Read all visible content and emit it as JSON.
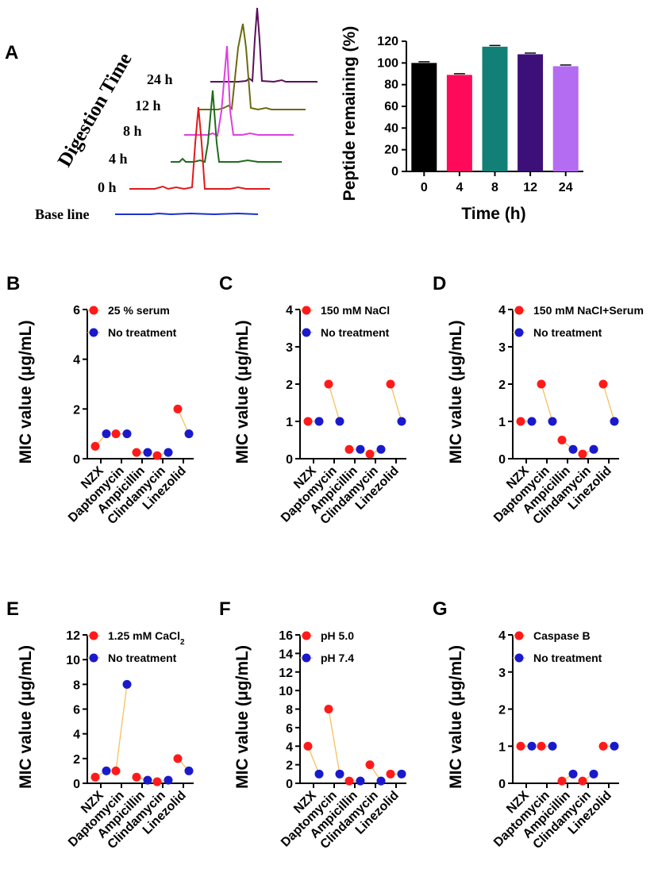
{
  "panel_letters": [
    "A",
    "B",
    "C",
    "D",
    "E",
    "F",
    "G"
  ],
  "chromatogram": {
    "title": "Digestion Time",
    "traces": [
      {
        "label": "24 h",
        "color": "#5b0f5b",
        "peak": 95
      },
      {
        "label": "12 h",
        "color": "#6b6b10",
        "peak": 108
      },
      {
        "label": "8 h",
        "color": "#e03ee0",
        "peak": 80
      },
      {
        "label": "4 h",
        "color": "#1e6b1e",
        "peak": 55
      },
      {
        "label": "0 h",
        "color": "#e01a1a",
        "peak": 70
      },
      {
        "label": "Base line",
        "color": "#1a2fd6",
        "peak": 0
      }
    ]
  },
  "chart_data": [
    {
      "id": "A",
      "type": "bar",
      "title": "",
      "xlabel": "Time (h)",
      "ylabel": "Peptide remaining (%)",
      "categories": [
        "0",
        "4",
        "8",
        "12",
        "24"
      ],
      "values": [
        100,
        89,
        115,
        108,
        97
      ],
      "colors": [
        "#000000",
        "#ff0a5a",
        "#128077",
        "#3d0f78",
        "#b36cf2"
      ],
      "ylim": [
        0,
        120
      ],
      "yticks": [
        "0",
        "20",
        "40",
        "60",
        "80",
        "100",
        "120"
      ]
    },
    {
      "id": "B",
      "type": "scatter",
      "ylabel": "MIC value (μg/mL)",
      "categories": [
        "NZX",
        "Daptomycin",
        "Ampicillin",
        "Clindamycin",
        "Linezolid"
      ],
      "ylim": [
        0,
        6
      ],
      "yticks": [
        "0",
        "2",
        "4",
        "6"
      ],
      "series": [
        {
          "name": "25 % serum",
          "values": [
            0.5,
            1,
            0.25,
            0.125,
            2
          ]
        },
        {
          "name": "No treatment",
          "values": [
            1,
            1,
            0.25,
            0.25,
            1
          ]
        }
      ]
    },
    {
      "id": "C",
      "type": "scatter",
      "ylabel": "MIC value (μg/mL)",
      "categories": [
        "NZX",
        "Daptomycin",
        "Ampicillin",
        "Clindamycin",
        "Linezolid"
      ],
      "ylim": [
        0,
        4
      ],
      "yticks": [
        "0",
        "1",
        "2",
        "3",
        "4"
      ],
      "series": [
        {
          "name": "150 mM NaCl",
          "values": [
            1,
            2,
            0.25,
            0.125,
            2
          ]
        },
        {
          "name": "No treatment",
          "values": [
            1,
            1,
            0.25,
            0.25,
            1
          ]
        }
      ]
    },
    {
      "id": "D",
      "type": "scatter",
      "ylabel": "MIC value (μg/mL)",
      "categories": [
        "NZX",
        "Daptomycin",
        "Ampicillin",
        "Clindamycin",
        "Linezolid"
      ],
      "ylim": [
        0,
        4
      ],
      "yticks": [
        "0",
        "1",
        "2",
        "3",
        "4"
      ],
      "series": [
        {
          "name": "150 mM NaCl+Serum",
          "values": [
            1,
            2,
            0.5,
            0.125,
            2
          ]
        },
        {
          "name": "No treatment",
          "values": [
            1,
            1,
            0.25,
            0.25,
            1
          ]
        }
      ]
    },
    {
      "id": "E",
      "type": "scatter",
      "ylabel": "MIC value (μg/mL)",
      "categories": [
        "NZX",
        "Daptomycin",
        "Ampicillin",
        "Clindamycin",
        "Linezolid"
      ],
      "ylim": [
        0,
        12
      ],
      "yticks": [
        "0",
        "2",
        "4",
        "6",
        "8",
        "10",
        "12"
      ],
      "series": [
        {
          "name": "1.25 mM CaCl",
          "subscript": "2",
          "values": [
            0.5,
            1,
            0.5,
            0.125,
            2
          ]
        },
        {
          "name": "No treatment",
          "values": [
            1,
            8,
            0.25,
            0.25,
            1
          ]
        }
      ]
    },
    {
      "id": "F",
      "type": "scatter",
      "ylabel": "MIC value (μg/mL)",
      "categories": [
        "NZX",
        "Daptomycin",
        "Ampicillin",
        "Clindamycin",
        "Linezolid"
      ],
      "ylim": [
        0,
        16
      ],
      "yticks": [
        "0",
        "2",
        "4",
        "6",
        "8",
        "10",
        "12",
        "14",
        "16"
      ],
      "series": [
        {
          "name": "pH 5.0",
          "values": [
            4,
            8,
            0.25,
            2,
            1
          ]
        },
        {
          "name": "pH 7.4",
          "values": [
            1,
            1,
            0.25,
            0.25,
            1
          ]
        }
      ]
    },
    {
      "id": "G",
      "type": "scatter",
      "ylabel": "MIC value (μg/mL)",
      "categories": [
        "NZX",
        "Daptomycin",
        "Ampicillin",
        "Clindamycin",
        "Linezolid"
      ],
      "ylim": [
        0,
        4
      ],
      "yticks": [
        "0",
        "1",
        "2",
        "3",
        "4"
      ],
      "series": [
        {
          "name": "Caspase B",
          "values": [
            1,
            1,
            0.0625,
            0.0625,
            1
          ]
        },
        {
          "name": "No treatment",
          "values": [
            1,
            1,
            0.25,
            0.25,
            1
          ]
        }
      ]
    }
  ],
  "colors": {
    "treatment": "#ff1a1a",
    "control": "#1a1acc",
    "connector": "#f2c25c"
  }
}
